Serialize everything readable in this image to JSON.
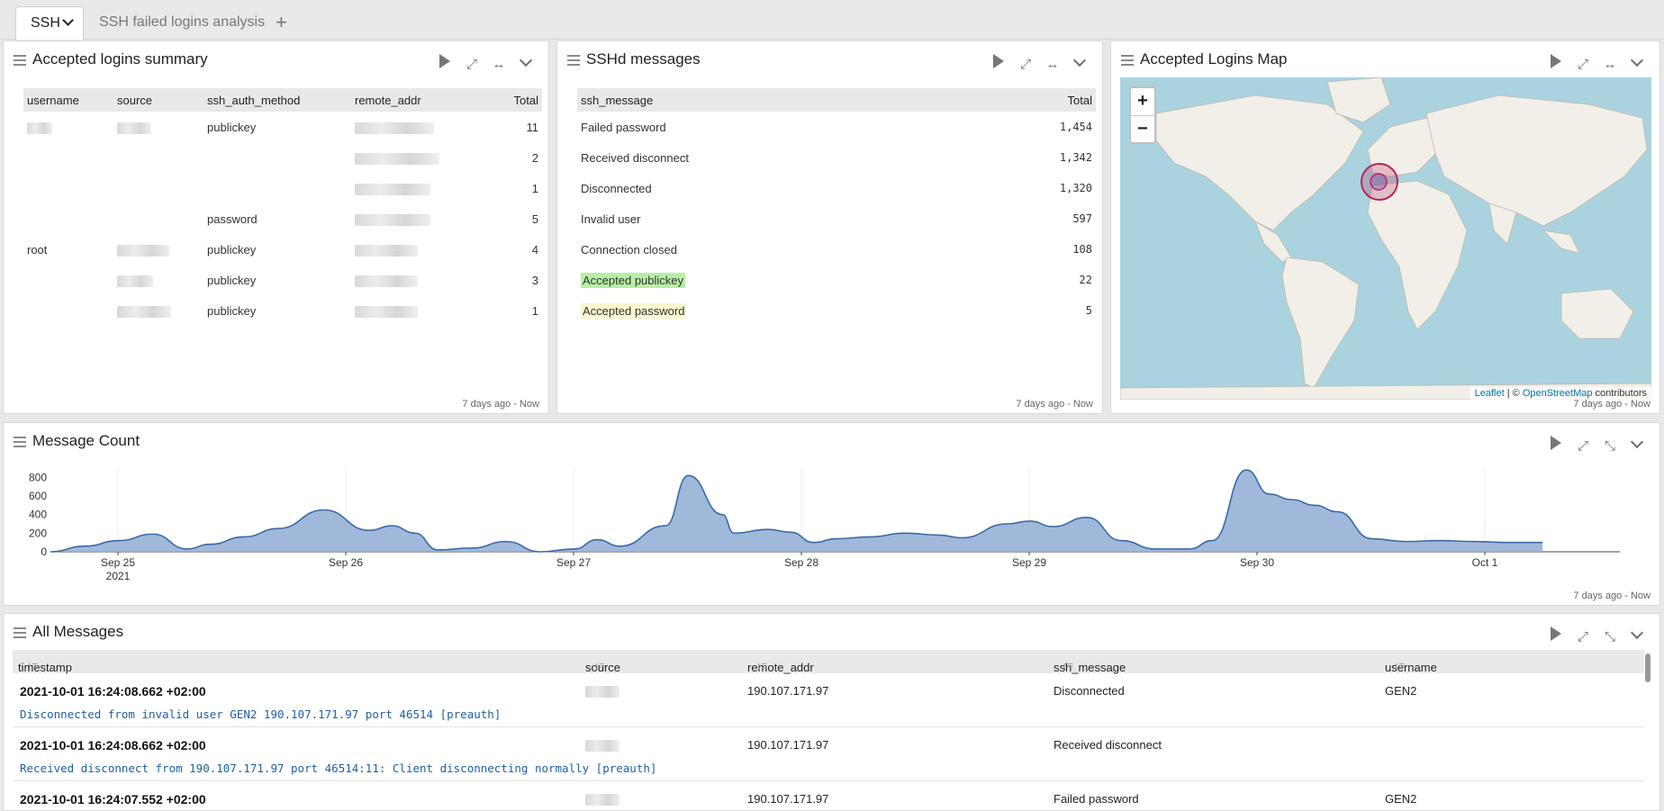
{
  "tabs": [
    {
      "label": "SSH"
    },
    {
      "label": "SSH failed logins analysis"
    }
  ],
  "add_tab": "+",
  "panels": {
    "accepted_logins": {
      "title": "Accepted logins summary",
      "headers": [
        "username",
        "source",
        "ssh_auth_method",
        "remote_addr",
        "Total"
      ],
      "rows": [
        {
          "username": "",
          "method": "publickey",
          "total": "11"
        },
        {
          "username": "",
          "method": "",
          "total": "2"
        },
        {
          "username": "",
          "method": "",
          "total": "1"
        },
        {
          "username": "",
          "method": "password",
          "total": "5"
        },
        {
          "username": "root",
          "method": "publickey",
          "total": "4"
        },
        {
          "username": "",
          "method": "publickey",
          "total": "3"
        },
        {
          "username": "",
          "method": "publickey",
          "total": "1"
        }
      ],
      "timeframe": "7 days ago - Now"
    },
    "sshd_messages": {
      "title": "SSHd messages",
      "headers": [
        "ssh_message",
        "Total"
      ],
      "rows": [
        {
          "message": "Failed password",
          "total": "1,454"
        },
        {
          "message": "Received disconnect",
          "total": "1,342"
        },
        {
          "message": "Disconnected",
          "total": "1,320"
        },
        {
          "message": "Invalid user",
          "total": "597"
        },
        {
          "message": "Connection closed",
          "total": "108"
        },
        {
          "message": "Accepted publickey",
          "total": "22",
          "highlight": "#b7f0a4"
        },
        {
          "message": "Accepted password",
          "total": "5",
          "highlight": "#fbf8cf"
        }
      ],
      "timeframe": "7 days ago - Now"
    },
    "map": {
      "title": "Accepted Logins Map",
      "zoom_in": "+",
      "zoom_out": "−",
      "attribution_leaflet": "Leaflet",
      "attribution_sep": " | © ",
      "attribution_osm": "OpenStreetMap",
      "attribution_tail": " contributors",
      "timeframe": "7 days ago - Now"
    },
    "message_count": {
      "title": "Message Count",
      "timeframe": "7 days ago - Now"
    },
    "all_messages": {
      "title": "All Messages",
      "headers": [
        "timestamp",
        "source",
        "remote_addr",
        "ssh_message",
        "username"
      ],
      "rows": [
        {
          "timestamp": "2021-10-01 16:24:08.662 +02:00",
          "remote_addr": "190.107.171.97",
          "ssh_message": "Disconnected",
          "username": "GEN2",
          "full": "Disconnected from invalid user GEN2 190.107.171.97 port 46514 [preauth]"
        },
        {
          "timestamp": "2021-10-01 16:24:08.662 +02:00",
          "remote_addr": "190.107.171.97",
          "ssh_message": "Received disconnect",
          "username": "",
          "full": "Received disconnect from 190.107.171.97 port 46514:11: Client disconnecting normally [preauth]"
        },
        {
          "timestamp": "2021-10-01 16:24:07.552 +02:00",
          "remote_addr": "190.107.171.97",
          "ssh_message": "Failed password",
          "username": "GEN2",
          "full": ""
        }
      ]
    }
  },
  "chart_data": {
    "type": "area",
    "title": "Message Count",
    "x_ticks": [
      "Sep 25",
      "Sep 26",
      "Sep 27",
      "Sep 28",
      "Sep 29",
      "Sep 30",
      "Oct 1"
    ],
    "x_tick_year": "2021",
    "y_ticks": [
      "0",
      "200",
      "400",
      "600",
      "800"
    ],
    "ylim": [
      0,
      900
    ],
    "x": [
      0,
      0.15,
      0.3,
      0.45,
      0.6,
      0.7,
      0.85,
      1.0,
      1.2,
      1.4,
      1.5,
      1.6,
      1.7,
      1.85,
      2.0,
      2.15,
      2.3,
      2.4,
      2.5,
      2.7,
      2.8,
      2.95,
      3.0,
      3.15,
      3.25,
      3.35,
      3.45,
      3.6,
      3.75,
      3.9,
      4.0,
      4.2,
      4.3,
      4.4,
      4.55,
      4.7,
      4.85,
      5.0,
      5.1,
      5.25,
      5.35,
      5.45,
      5.55,
      5.65,
      5.8,
      5.95,
      6.1,
      6.25,
      6.4,
      6.55
    ],
    "values": [
      0,
      60,
      120,
      190,
      30,
      80,
      160,
      250,
      450,
      230,
      280,
      200,
      20,
      40,
      110,
      0,
      30,
      130,
      60,
      280,
      820,
      400,
      200,
      240,
      210,
      100,
      140,
      160,
      200,
      180,
      150,
      300,
      330,
      270,
      370,
      120,
      30,
      30,
      120,
      880,
      620,
      560,
      500,
      430,
      140,
      110,
      120,
      110,
      100,
      100
    ]
  }
}
